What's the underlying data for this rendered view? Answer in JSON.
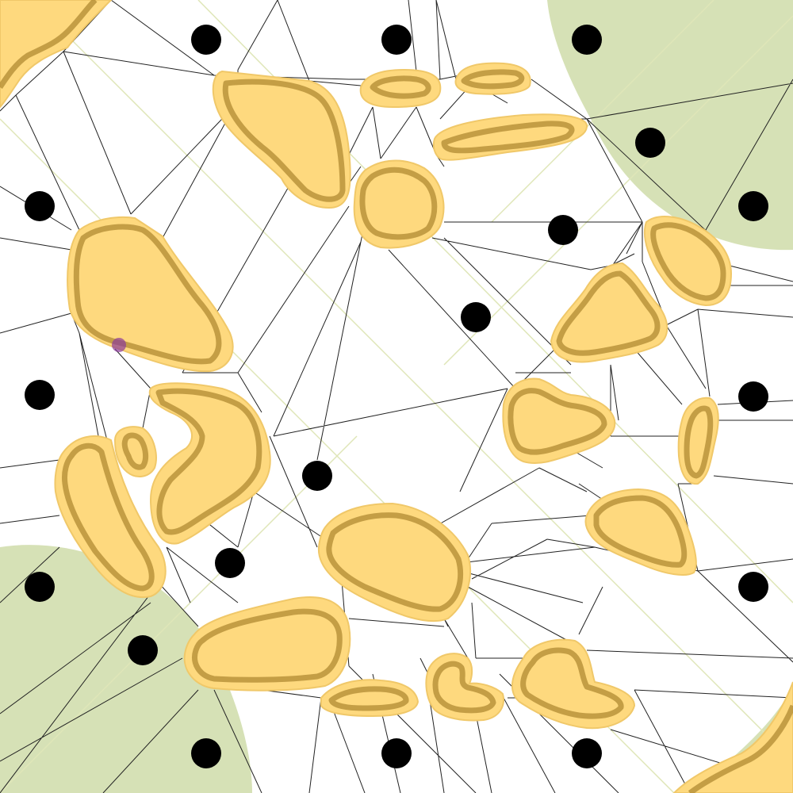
{
  "diagram": {
    "type": "voronoi-navmesh",
    "description_visible_text": "",
    "colors": {
      "background": "#ffffff",
      "mesh_line": "#222222",
      "obstacle_fill": "#fed97e",
      "obstacle_core": "#b08a33",
      "zone_fill": "#b5c97a",
      "site_dot": "#000000",
      "marker": "#8b3a9a",
      "guide_line": "#dfe6b8"
    },
    "counts": {
      "sites": 20,
      "obstacles": 24,
      "zones": 3,
      "markers": 1
    }
  }
}
